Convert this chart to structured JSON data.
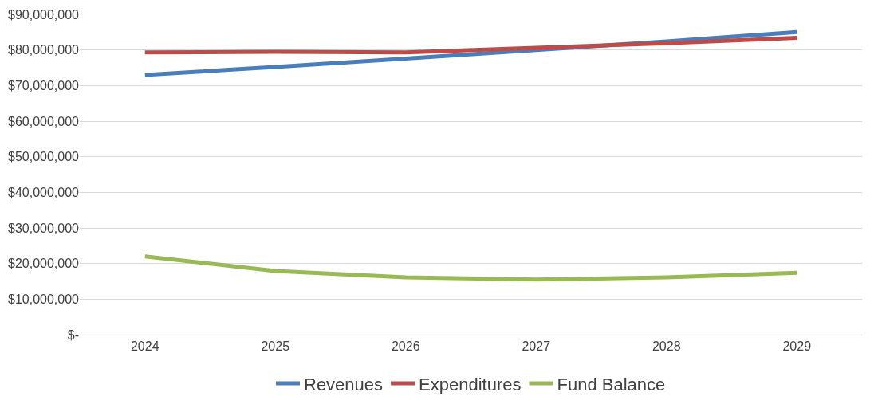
{
  "chart_data": {
    "type": "line",
    "categories": [
      "2024",
      "2025",
      "2026",
      "2027",
      "2028",
      "2029"
    ],
    "series": [
      {
        "name": "Revenues",
        "color": "#4a7ebb",
        "values": [
          73000000,
          75200000,
          77600000,
          80000000,
          82400000,
          85000000
        ]
      },
      {
        "name": "Expenditures",
        "color": "#be4b48",
        "values": [
          79300000,
          79500000,
          79300000,
          80600000,
          81900000,
          83400000
        ]
      },
      {
        "name": "Fund Balance",
        "color": "#98b954",
        "values": [
          22000000,
          17900000,
          16100000,
          15500000,
          16100000,
          17400000
        ]
      }
    ],
    "ylim": [
      0,
      90000000
    ],
    "yticks": [
      {
        "value": 0,
        "label": "$-"
      },
      {
        "value": 10000000,
        "label": "$10,000,000"
      },
      {
        "value": 20000000,
        "label": "$20,000,000"
      },
      {
        "value": 30000000,
        "label": "$30,000,000"
      },
      {
        "value": 40000000,
        "label": "$40,000,000"
      },
      {
        "value": 50000000,
        "label": "$50,000,000"
      },
      {
        "value": 60000000,
        "label": "$60,000,000"
      },
      {
        "value": 70000000,
        "label": "$70,000,000"
      },
      {
        "value": 80000000,
        "label": "$80,000,000"
      },
      {
        "value": 90000000,
        "label": "$90,000,000"
      }
    ],
    "grid": "y",
    "legend": "bottom",
    "marker": "none",
    "line_style": "solid"
  }
}
